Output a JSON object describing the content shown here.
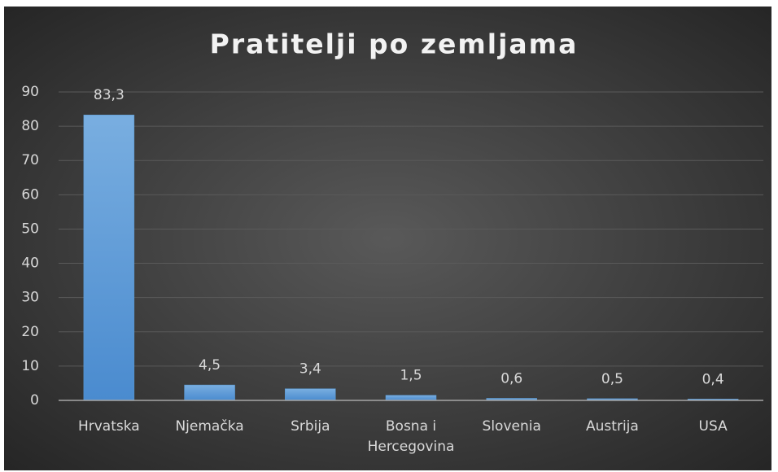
{
  "chart_data": {
    "type": "bar",
    "title": "Pratitelji po zemljama",
    "categories": [
      "Hrvatska",
      "Njemačka",
      "Srbija",
      "Bosna i Hercegovina",
      "Slovenia",
      "Austrija",
      "USA"
    ],
    "values": [
      83.3,
      4.5,
      3.4,
      1.5,
      0.6,
      0.5,
      0.4
    ],
    "value_labels": [
      "83,3",
      "4,5",
      "3,4",
      "1,5",
      "0,6",
      "0,5",
      "0,4"
    ],
    "color": "#5b9bd5",
    "ylim": [
      0,
      90
    ],
    "yticks": [
      0,
      10,
      20,
      30,
      40,
      50,
      60,
      70,
      80,
      90
    ],
    "grid": true
  }
}
